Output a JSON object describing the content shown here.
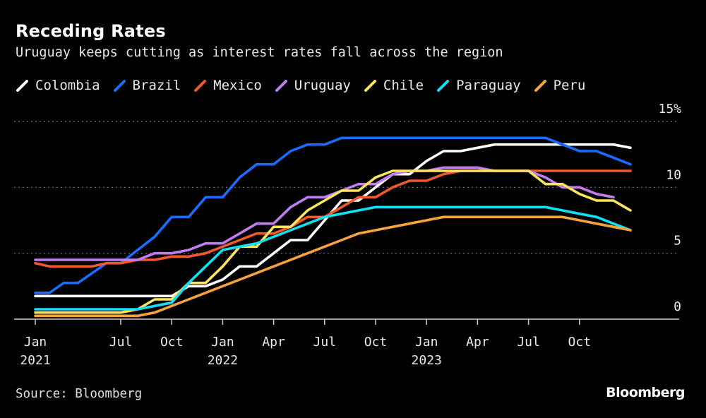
{
  "title": "Receding Rates",
  "subtitle": "Uruguay keeps cutting as interest rates fall across the region",
  "source": "Source: Bloomberg",
  "logo": "Bloomberg",
  "chart_data": {
    "type": "line",
    "title": "Receding Rates",
    "subtitle": "Uruguay keeps cutting as interest rates fall across the region",
    "xlabel": "",
    "ylabel": "",
    "ylim": [
      0,
      15
    ],
    "y_unit": "%",
    "y_ticks": [
      {
        "value": 0,
        "label": "0"
      },
      {
        "value": 5,
        "label": "5"
      },
      {
        "value": 10,
        "label": "10"
      },
      {
        "value": 15,
        "label": "15%"
      }
    ],
    "grid": "horizontal dotted",
    "legend_placement": "top-left",
    "x": [
      "2021-01",
      "2021-02",
      "2021-03",
      "2021-04",
      "2021-05",
      "2021-06",
      "2021-07",
      "2021-08",
      "2021-09",
      "2021-10",
      "2021-11",
      "2021-12",
      "2022-01",
      "2022-02",
      "2022-03",
      "2022-04",
      "2022-05",
      "2022-06",
      "2022-07",
      "2022-08",
      "2022-09",
      "2022-10",
      "2022-11",
      "2022-12",
      "2023-01",
      "2023-02",
      "2023-03",
      "2023-04",
      "2023-05",
      "2023-06",
      "2023-07",
      "2023-08",
      "2023-09",
      "2023-10",
      "2023-11",
      "2023-12",
      "2024-01"
    ],
    "x_ticks": [
      {
        "month": 0,
        "label": "Jan",
        "year": "2021"
      },
      {
        "month": 6,
        "label": "Jul",
        "year": ""
      },
      {
        "month": 9,
        "label": "Oct",
        "year": ""
      },
      {
        "month": 12,
        "label": "Jan",
        "year": "2022"
      },
      {
        "month": 15,
        "label": "Apr",
        "year": ""
      },
      {
        "month": 18,
        "label": "Jul",
        "year": ""
      },
      {
        "month": 21,
        "label": "Oct",
        "year": ""
      },
      {
        "month": 24,
        "label": "Jan",
        "year": "2023"
      },
      {
        "month": 27,
        "label": "Apr",
        "year": ""
      },
      {
        "month": 30,
        "label": "Jul",
        "year": ""
      },
      {
        "month": 33,
        "label": "Oct",
        "year": ""
      }
    ],
    "series": [
      {
        "name": "Colombia",
        "color": "#ffffff",
        "values": [
          1.75,
          1.75,
          1.75,
          1.75,
          1.75,
          1.75,
          1.75,
          1.75,
          1.75,
          1.75,
          2.5,
          2.5,
          3.0,
          4.0,
          4.0,
          5.0,
          6.0,
          6.0,
          7.5,
          9.0,
          9.0,
          10.0,
          11.0,
          11.0,
          12.0,
          12.75,
          12.75,
          13.0,
          13.25,
          13.25,
          13.25,
          13.25,
          13.25,
          13.25,
          13.25,
          13.25,
          13.0
        ]
      },
      {
        "name": "Brazil",
        "color": "#1a6cff",
        "values": [
          2.0,
          2.0,
          2.75,
          2.75,
          3.5,
          4.25,
          4.25,
          5.25,
          6.25,
          7.75,
          7.75,
          9.25,
          9.25,
          10.75,
          11.75,
          11.75,
          12.75,
          13.25,
          13.25,
          13.75,
          13.75,
          13.75,
          13.75,
          13.75,
          13.75,
          13.75,
          13.75,
          13.75,
          13.75,
          13.75,
          13.75,
          13.75,
          13.25,
          12.75,
          12.75,
          12.25,
          11.75
        ]
      },
      {
        "name": "Mexico",
        "color": "#f2592a",
        "values": [
          4.25,
          4.0,
          4.0,
          4.0,
          4.0,
          4.25,
          4.25,
          4.5,
          4.5,
          4.75,
          4.75,
          5.0,
          5.5,
          6.0,
          6.5,
          6.5,
          7.0,
          7.75,
          7.75,
          8.5,
          9.25,
          9.25,
          10.0,
          10.5,
          10.5,
          11.0,
          11.25,
          11.25,
          11.25,
          11.25,
          11.25,
          11.25,
          11.25,
          11.25,
          11.25,
          11.25,
          11.25
        ]
      },
      {
        "name": "Uruguay",
        "color": "#c27cf2",
        "values": [
          4.5,
          4.5,
          4.5,
          4.5,
          4.5,
          4.5,
          4.5,
          4.5,
          5.0,
          5.0,
          5.25,
          5.75,
          5.75,
          6.5,
          7.25,
          7.25,
          8.5,
          9.25,
          9.25,
          9.75,
          10.25,
          10.25,
          11.0,
          11.25,
          11.25,
          11.5,
          11.5,
          11.5,
          11.25,
          11.25,
          11.25,
          10.75,
          10.0,
          10.0,
          9.5,
          9.25,
          null
        ]
      },
      {
        "name": "Chile",
        "color": "#fce45f",
        "values": [
          0.5,
          0.5,
          0.5,
          0.5,
          0.5,
          0.5,
          0.5,
          0.75,
          1.5,
          1.5,
          2.75,
          2.75,
          4.0,
          5.5,
          5.5,
          7.0,
          7.0,
          8.25,
          9.0,
          9.75,
          9.75,
          10.75,
          11.25,
          11.25,
          11.25,
          11.25,
          11.25,
          11.25,
          11.25,
          11.25,
          11.25,
          10.25,
          10.25,
          9.5,
          9.0,
          9.0,
          8.25
        ]
      },
      {
        "name": "Paraguay",
        "color": "#12e0f0",
        "values": [
          0.75,
          0.75,
          0.75,
          0.75,
          0.75,
          0.75,
          0.75,
          0.75,
          1.0,
          1.25,
          2.75,
          4.0,
          5.25,
          5.5,
          5.75,
          6.25,
          6.75,
          7.25,
          7.75,
          8.0,
          8.25,
          8.5,
          8.5,
          8.5,
          8.5,
          8.5,
          8.5,
          8.5,
          8.5,
          8.5,
          8.5,
          8.5,
          8.25,
          8.0,
          7.75,
          7.25,
          6.75
        ]
      },
      {
        "name": "Peru",
        "color": "#f7a33c",
        "values": [
          0.25,
          0.25,
          0.25,
          0.25,
          0.25,
          0.25,
          0.25,
          0.25,
          0.5,
          1.0,
          1.5,
          2.0,
          2.5,
          3.0,
          3.5,
          4.0,
          4.5,
          5.0,
          5.5,
          6.0,
          6.5,
          6.75,
          7.0,
          7.25,
          7.5,
          7.75,
          7.75,
          7.75,
          7.75,
          7.75,
          7.75,
          7.75,
          7.75,
          7.5,
          7.25,
          7.0,
          6.75
        ]
      }
    ]
  }
}
